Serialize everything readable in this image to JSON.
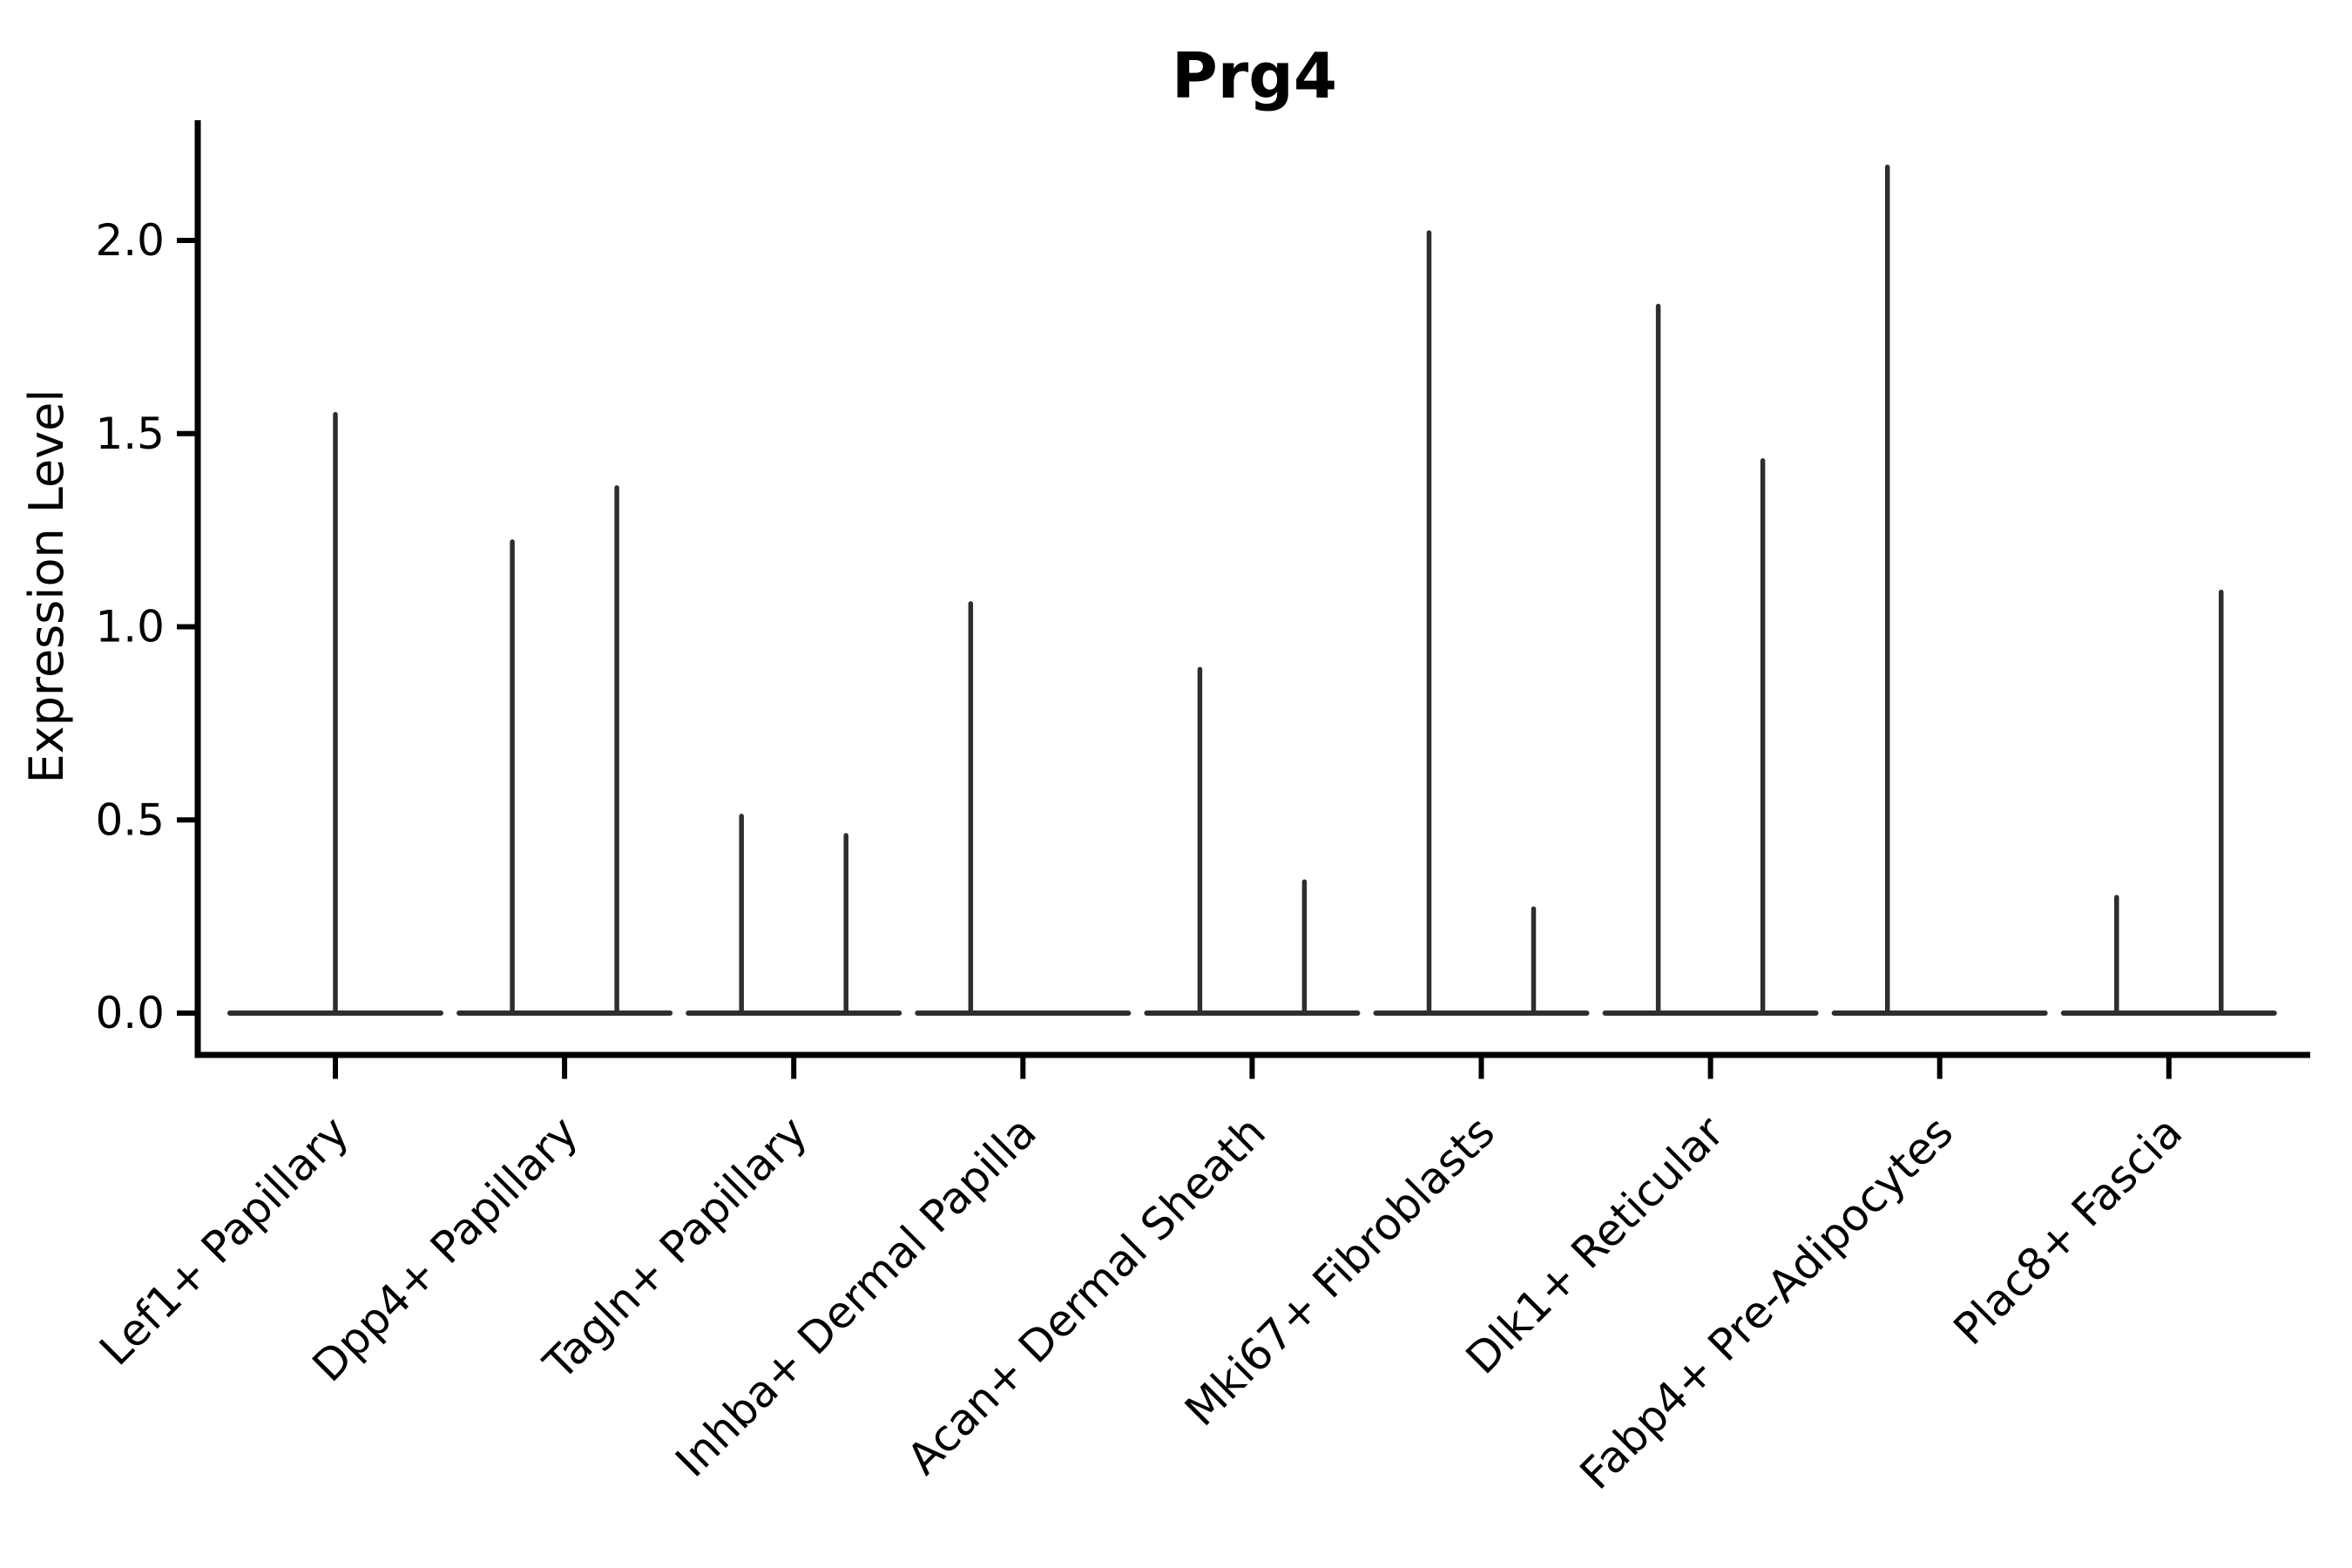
{
  "title": "Prg4",
  "ylabel": "Expression Level",
  "chart_data": {
    "type": "violin",
    "title": "Prg4",
    "xlabel": "",
    "ylabel": "Expression Level",
    "ylim": [
      -0.1,
      2.31
    ],
    "ytick_values": [
      0.0,
      0.5,
      1.0,
      1.5,
      2.0
    ],
    "ytick_labels": [
      "0.0",
      "0.5",
      "1.0",
      "1.5",
      "2.0"
    ],
    "grid": false,
    "legend": "none",
    "line_color": "#2e2e2e",
    "axis_color": "#000000",
    "background_color": "#ffffff",
    "categories": [
      "Lef1+ Papillary",
      "Dpp4+ Papillary",
      "Tagln+ Papillary",
      "Inhba+ Dermal Papilla",
      "Acan+ Dermal Sheath",
      "Mki67+ Fibroblasts",
      "Dlk1+ Reticular",
      "Fabp4+ Pre-Adipocytes",
      "Plac8+ Fascia"
    ],
    "violins": [
      {
        "category": "Lef1+ Papillary",
        "baseline_value": 0.0,
        "spikes": [
          {
            "pos": "center",
            "max_expression": 1.55
          }
        ]
      },
      {
        "category": "Dpp4+ Papillary",
        "baseline_value": 0.0,
        "spikes": [
          {
            "pos": "left",
            "max_expression": 1.22
          },
          {
            "pos": "right",
            "max_expression": 1.36
          }
        ]
      },
      {
        "category": "Tagln+ Papillary",
        "baseline_value": 0.0,
        "spikes": [
          {
            "pos": "left",
            "max_expression": 0.51
          },
          {
            "pos": "right",
            "max_expression": 0.46
          }
        ]
      },
      {
        "category": "Inhba+ Dermal Papilla",
        "baseline_value": 0.0,
        "spikes": [
          {
            "pos": "left",
            "max_expression": 1.06
          }
        ]
      },
      {
        "category": "Acan+ Dermal Sheath",
        "baseline_value": 0.0,
        "spikes": [
          {
            "pos": "left",
            "max_expression": 0.89
          },
          {
            "pos": "right",
            "max_expression": 0.34
          }
        ]
      },
      {
        "category": "Mki67+ Fibroblasts",
        "baseline_value": 0.0,
        "spikes": [
          {
            "pos": "left",
            "max_expression": 2.02
          },
          {
            "pos": "right",
            "max_expression": 0.27
          }
        ]
      },
      {
        "category": "Dlk1+ Reticular",
        "baseline_value": 0.0,
        "spikes": [
          {
            "pos": "left",
            "max_expression": 1.83
          },
          {
            "pos": "right",
            "max_expression": 1.43
          }
        ]
      },
      {
        "category": "Fabp4+ Pre-Adipocytes",
        "baseline_value": 0.0,
        "spikes": [
          {
            "pos": "left",
            "max_expression": 2.19
          }
        ]
      },
      {
        "category": "Plac8+ Fascia",
        "baseline_value": 0.0,
        "spikes": [
          {
            "pos": "left",
            "max_expression": 0.3
          },
          {
            "pos": "right",
            "max_expression": 1.09
          }
        ]
      }
    ]
  }
}
